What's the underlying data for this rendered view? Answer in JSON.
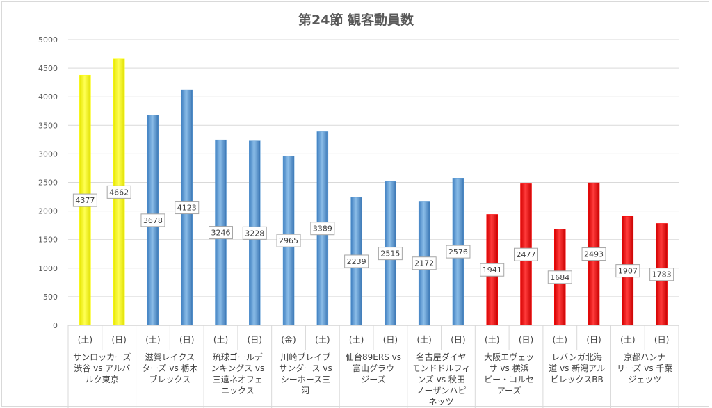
{
  "chart_data": {
    "type": "bar",
    "title": "第24節 観客動員数",
    "xlabel": "",
    "ylabel": "",
    "ylim": [
      0,
      5000
    ],
    "yticks": [
      0,
      500,
      1000,
      1500,
      2000,
      2500,
      3000,
      3500,
      4000,
      4500,
      5000
    ],
    "grid": true,
    "legend": "none",
    "colors": {
      "yellow": "#ffff00",
      "blue": "#5b9bd5",
      "red": "#ff0000"
    },
    "groups": [
      {
        "name": [
          "サンロッカーズ",
          "渋谷 vs アルバ",
          "ルク東京"
        ],
        "color": "yellow",
        "days": [
          "(土)",
          "(日)"
        ],
        "values": [
          4377,
          4662
        ]
      },
      {
        "name": [
          "滋賀レイクス",
          "ターズ vs 栃木",
          "ブレックス"
        ],
        "color": "blue",
        "days": [
          "(土)",
          "(日)"
        ],
        "values": [
          3678,
          4123
        ]
      },
      {
        "name": [
          "琉球ゴールデ",
          "ンキングス vs",
          "三遠ネオフェ",
          "ニックス"
        ],
        "color": "blue",
        "days": [
          "(土)",
          "(日)"
        ],
        "values": [
          3246,
          3228
        ]
      },
      {
        "name": [
          "川崎ブレイブ",
          "サンダース vs",
          "シーホース三",
          "河"
        ],
        "color": "blue",
        "days": [
          "(金)",
          "(土)"
        ],
        "values": [
          2965,
          3389
        ]
      },
      {
        "name": [
          "仙台89ERS vs",
          "富山グラウ",
          "ジーズ"
        ],
        "color": "blue",
        "days": [
          "(土)",
          "(日)"
        ],
        "values": [
          2239,
          2515
        ]
      },
      {
        "name": [
          "名古屋ダイヤ",
          "モンドドルフィ",
          "ンズ vs 秋田",
          "ノーザンハピ",
          "ネッツ"
        ],
        "color": "blue",
        "days": [
          "(土)",
          "(日)"
        ],
        "values": [
          2172,
          2576
        ]
      },
      {
        "name": [
          "大阪エヴェッ",
          "サ vs 横浜",
          "ビー・コルセ",
          "アーズ"
        ],
        "color": "red",
        "days": [
          "(土)",
          "(日)"
        ],
        "values": [
          1941,
          2477
        ]
      },
      {
        "name": [
          "レバンガ北海",
          "道 vs 新潟アル",
          "ビレックスBB"
        ],
        "color": "red",
        "days": [
          "(土)",
          "(日)"
        ],
        "values": [
          1684,
          2493
        ]
      },
      {
        "name": [
          "京都ハンナ",
          "リーズ vs 千葉",
          "ジェッツ"
        ],
        "color": "red",
        "days": [
          "(土)",
          "(日)"
        ],
        "values": [
          1907,
          1783
        ]
      }
    ]
  }
}
